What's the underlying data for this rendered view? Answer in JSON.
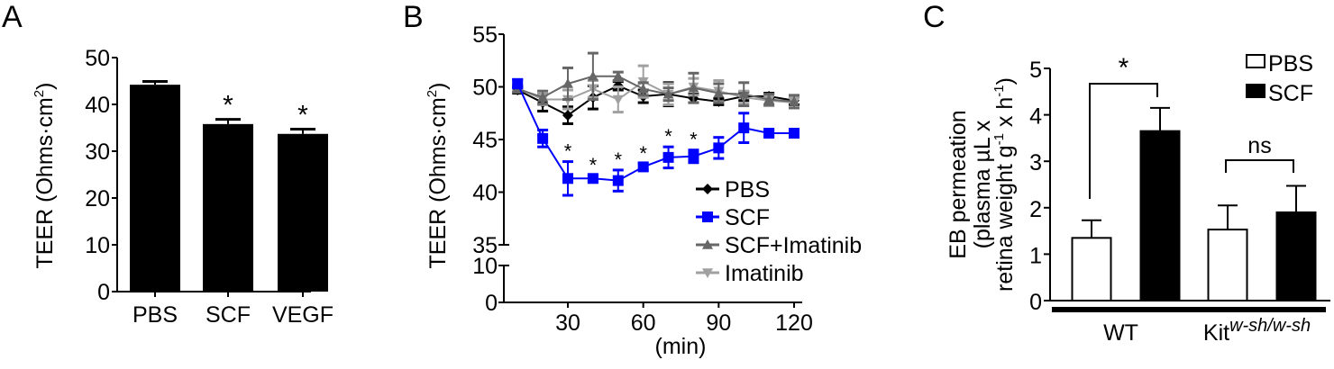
{
  "chart_data": [
    {
      "panel": "A",
      "type": "bar",
      "ylabel": "TEER (Ohms·cm",
      "ylabel_sup": "2",
      "ylabel_close": ")",
      "ylim": [
        0,
        50
      ],
      "yticks": [
        "0",
        "10",
        "20",
        "30",
        "40",
        "50"
      ],
      "ytick_values": [
        0,
        10,
        20,
        30,
        40,
        50
      ],
      "categories": [
        "PBS",
        "SCF",
        "VEGF"
      ],
      "values": [
        44.2,
        35.8,
        33.7
      ],
      "errors": [
        0.7,
        1.0,
        1.0
      ],
      "significance": [
        "",
        "*",
        "*"
      ],
      "bar_color": "#000000"
    },
    {
      "panel": "B",
      "type": "line",
      "ylabel": "TEER (Ohms·cm",
      "ylabel_sup": "2",
      "ylabel_close": ")",
      "xlabel": "(min)",
      "ylim_upper": [
        35,
        55
      ],
      "ylim_lower": [
        0,
        10
      ],
      "yticks_upper": [
        "35",
        "40",
        "45",
        "50",
        "55"
      ],
      "ytick_values_upper": [
        35,
        40,
        45,
        50,
        55
      ],
      "yticks_lower": [
        "0",
        "10"
      ],
      "ytick_values_lower": [
        0,
        10
      ],
      "xlim": [
        5,
        122
      ],
      "xticks": [
        "30",
        "60",
        "90",
        "120"
      ],
      "xtick_values": [
        30,
        60,
        90,
        120
      ],
      "x": [
        10,
        20,
        30,
        40,
        50,
        60,
        70,
        80,
        90,
        100,
        110,
        120
      ],
      "series": [
        {
          "name": "PBS",
          "color": "#000000",
          "marker": "diamond",
          "values": [
            49.7,
            48.5,
            47.3,
            49.0,
            50.1,
            49.1,
            49.3,
            48.9,
            48.6,
            49.1,
            49.1,
            48.7
          ],
          "errors": [
            0.3,
            0.8,
            0.8,
            1.1,
            0.4,
            0.6,
            1.1,
            0.4,
            0.3,
            0.4,
            0.3,
            0.4
          ]
        },
        {
          "name": "SCF",
          "color": "#0000ff",
          "marker": "square",
          "values": [
            50.3,
            45.1,
            41.3,
            41.3,
            41.1,
            42.4,
            43.3,
            43.4,
            44.2,
            46.1,
            45.6,
            45.6
          ],
          "errors": [
            0.4,
            0.8,
            1.6,
            0.3,
            1.0,
            0.3,
            1.0,
            0.6,
            1.0,
            1.4,
            0.3,
            0.3
          ]
        },
        {
          "name": "SCF+Imatinib",
          "color": "#666666",
          "marker": "triangle",
          "values": [
            49.8,
            49.0,
            50.3,
            51.0,
            51.0,
            49.8,
            49.3,
            49.9,
            49.4,
            49.3,
            48.8,
            48.6
          ],
          "errors": [
            0.3,
            0.6,
            1.5,
            2.2,
            0.4,
            0.6,
            0.6,
            1.4,
            0.9,
            1.1,
            0.5,
            0.6
          ]
        },
        {
          "name": "Imatinib",
          "color": "#a0a0a0",
          "marker": "inverted-triangle",
          "values": [
            49.9,
            48.8,
            48.8,
            49.8,
            48.8,
            50.5,
            49.3,
            50.0,
            49.6,
            49.0,
            48.7,
            48.5
          ],
          "errors": [
            0.3,
            0.5,
            0.9,
            0.8,
            1.2,
            1.5,
            1.0,
            0.8,
            1.0,
            0.6,
            0.5,
            0.5
          ]
        }
      ],
      "significance_x": [
        30,
        40,
        50,
        60,
        70,
        80
      ],
      "significance_label": "*",
      "legend_position": "lower-right"
    },
    {
      "panel": "C",
      "type": "bar",
      "ylabel_line1": "EB permeation",
      "ylabel_line2": "(plasma µL x",
      "ylabel_line3a": "retina weight g",
      "ylabel_line3_sup1": "-1",
      "ylabel_line3b": " x h",
      "ylabel_line3_sup2": "-1",
      "ylabel_line3c": ")",
      "ylim": [
        0,
        5
      ],
      "yticks": [
        "0",
        "1",
        "2",
        "3",
        "4",
        "5"
      ],
      "ytick_values": [
        0,
        1,
        2,
        3,
        4,
        5
      ],
      "groups": [
        {
          "name": "WT",
          "sup": ""
        },
        {
          "name": "Kit",
          "sup": "w-sh/w-sh"
        }
      ],
      "series": [
        {
          "name": "PBS",
          "fill": "#ffffff",
          "values": [
            1.35,
            1.53
          ],
          "errors": [
            0.38,
            0.52
          ]
        },
        {
          "name": "SCF",
          "fill": "#000000",
          "values": [
            3.65,
            1.9
          ],
          "errors": [
            0.5,
            0.57
          ]
        }
      ],
      "comparisons": [
        {
          "group": "WT",
          "label": "*"
        },
        {
          "group": "Kit",
          "label": "ns"
        }
      ],
      "legend_position": "top-right"
    }
  ],
  "panel_labels": [
    "A",
    "B",
    "C"
  ]
}
